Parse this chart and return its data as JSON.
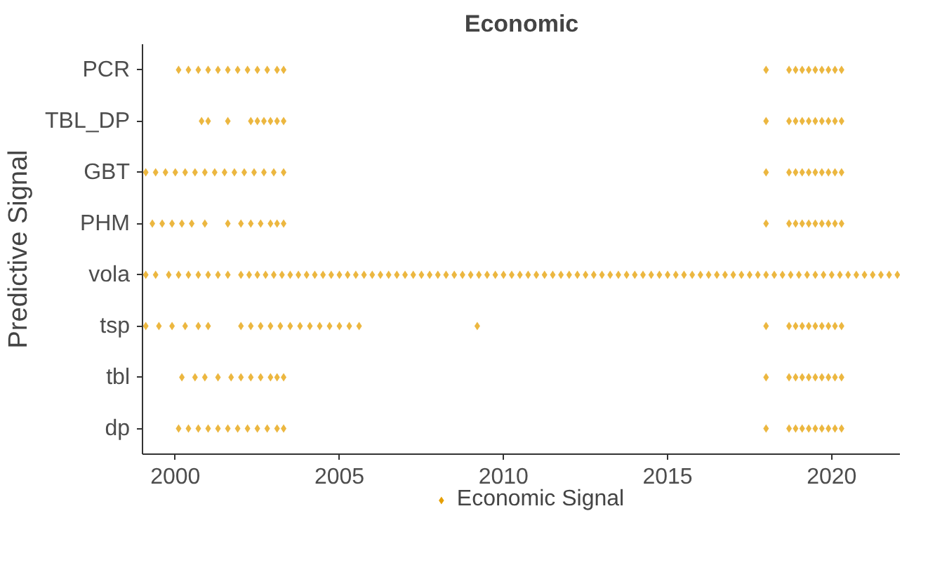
{
  "chart_data": {
    "type": "scatter",
    "orientation": "horizontal",
    "title": "Economic",
    "ylabel": "Predictive Signal",
    "xlim": [
      1999.0,
      2022.1
    ],
    "xticks": [
      2000,
      2005,
      2010,
      2015,
      2020
    ],
    "categories": [
      "PCR",
      "TBL_DP",
      "GBT",
      "PHM",
      "vola",
      "tsp",
      "tbl",
      "dp"
    ],
    "grid": false,
    "legend": "bottom",
    "marker": "diamond",
    "series": [
      {
        "name": "Economic Signal",
        "color": "#e69f00",
        "values": [
          2000.1,
          2000.4,
          2000.7,
          2001.0,
          2001.3,
          2001.6,
          2001.9,
          2002.2,
          2002.5,
          2002.8,
          2003.1,
          2003.3,
          2018.0,
          2018.7,
          2018.9,
          2019.1,
          2019.3,
          2019.5,
          2019.7,
          2019.9,
          2020.1,
          2020.3,
          2000.8,
          2001.0,
          2001.6,
          2002.3,
          2002.5,
          2002.7,
          2002.9,
          2003.1,
          2003.3,
          2018.0,
          2018.7,
          2018.9,
          2019.1,
          2019.3,
          2019.5,
          2019.7,
          2019.9,
          2020.1,
          2020.3,
          1999.1,
          1999.4,
          1999.7,
          2000.0,
          2000.3,
          2000.6,
          2000.9,
          2001.2,
          2001.5,
          2001.8,
          2002.1,
          2002.4,
          2002.7,
          2003.0,
          2003.3,
          2018.0,
          2018.7,
          2018.9,
          2019.1,
          2019.3,
          2019.5,
          2019.7,
          2019.9,
          2020.1,
          2020.3,
          1999.3,
          1999.6,
          1999.9,
          2000.2,
          2000.5,
          2000.9,
          2001.6,
          2002.0,
          2002.3,
          2002.6,
          2002.9,
          2003.1,
          2003.3,
          2018.0,
          2018.7,
          2018.9,
          2019.1,
          2019.3,
          2019.5,
          2019.7,
          2019.9,
          2020.1,
          2020.3,
          1999.1,
          1999.4,
          1999.8,
          2000.1,
          2000.4,
          2000.7,
          2001.0,
          2001.3,
          2001.6,
          2002.0,
          2002.25,
          2002.5,
          2002.75,
          2003.0,
          2003.25,
          2003.5,
          2003.75,
          2004.0,
          2004.25,
          2004.5,
          2004.75,
          2005.0,
          2005.25,
          2005.5,
          2005.75,
          2006.0,
          2006.25,
          2006.5,
          2006.75,
          2007.0,
          2007.25,
          2007.5,
          2007.75,
          2008.0,
          2008.25,
          2008.5,
          2008.75,
          2009.0,
          2009.25,
          2009.5,
          2009.75,
          2010.0,
          2010.25,
          2010.5,
          2010.75,
          2011.0,
          2011.25,
          2011.5,
          2011.75,
          2012.0,
          2012.25,
          2012.5,
          2012.75,
          2013.0,
          2013.25,
          2013.5,
          2013.75,
          2014.0,
          2014.25,
          2014.5,
          2014.75,
          2015.0,
          2015.25,
          2015.5,
          2015.75,
          2016.0,
          2016.25,
          2016.5,
          2016.75,
          2017.0,
          2017.25,
          2017.5,
          2017.75,
          2018.0,
          2018.25,
          2018.5,
          2018.75,
          2019.0,
          2019.25,
          2019.5,
          2019.75,
          2020.0,
          2020.25,
          2020.5,
          2020.75,
          2021.0,
          2021.25,
          2021.5,
          2021.75,
          2022.0,
          1999.1,
          1999.5,
          1999.9,
          2000.3,
          2000.7,
          2001.0,
          2002.0,
          2002.3,
          2002.6,
          2002.9,
          2003.2,
          2003.5,
          2003.8,
          2004.1,
          2004.4,
          2004.7,
          2005.0,
          2005.3,
          2005.6,
          2009.2,
          2018.0,
          2018.7,
          2018.9,
          2019.1,
          2019.3,
          2019.5,
          2019.7,
          2019.9,
          2020.1,
          2020.3,
          2000.2,
          2000.6,
          2000.9,
          2001.3,
          2001.7,
          2002.0,
          2002.3,
          2002.6,
          2002.9,
          2003.1,
          2003.3,
          2018.0,
          2018.7,
          2018.9,
          2019.1,
          2019.3,
          2019.5,
          2019.7,
          2019.9,
          2020.1,
          2020.3,
          2000.1,
          2000.4,
          2000.7,
          2001.0,
          2001.3,
          2001.6,
          2001.9,
          2002.2,
          2002.5,
          2002.8,
          2003.1,
          2003.3,
          2018.0,
          2018.7,
          2018.9,
          2019.1,
          2019.3,
          2019.5,
          2019.7,
          2019.9,
          2020.1,
          2020.3
        ],
        "x": [
          "PCR",
          "PCR",
          "PCR",
          "PCR",
          "PCR",
          "PCR",
          "PCR",
          "PCR",
          "PCR",
          "PCR",
          "PCR",
          "PCR",
          "PCR",
          "PCR",
          "PCR",
          "PCR",
          "PCR",
          "PCR",
          "PCR",
          "PCR",
          "PCR",
          "PCR",
          "TBL_DP",
          "TBL_DP",
          "TBL_DP",
          "TBL_DP",
          "TBL_DP",
          "TBL_DP",
          "TBL_DP",
          "TBL_DP",
          "TBL_DP",
          "TBL_DP",
          "TBL_DP",
          "TBL_DP",
          "TBL_DP",
          "TBL_DP",
          "TBL_DP",
          "TBL_DP",
          "TBL_DP",
          "TBL_DP",
          "TBL_DP",
          "GBT",
          "GBT",
          "GBT",
          "GBT",
          "GBT",
          "GBT",
          "GBT",
          "GBT",
          "GBT",
          "GBT",
          "GBT",
          "GBT",
          "GBT",
          "GBT",
          "GBT",
          "GBT",
          "GBT",
          "GBT",
          "GBT",
          "GBT",
          "GBT",
          "GBT",
          "GBT",
          "GBT",
          "GBT",
          "PHM",
          "PHM",
          "PHM",
          "PHM",
          "PHM",
          "PHM",
          "PHM",
          "PHM",
          "PHM",
          "PHM",
          "PHM",
          "PHM",
          "PHM",
          "PHM",
          "PHM",
          "PHM",
          "PHM",
          "PHM",
          "PHM",
          "PHM",
          "PHM",
          "PHM",
          "PHM",
          "vola",
          "vola",
          "vola",
          "vola",
          "vola",
          "vola",
          "vola",
          "vola",
          "vola",
          "vola",
          "vola",
          "vola",
          "vola",
          "vola",
          "vola",
          "vola",
          "vola",
          "vola",
          "vola",
          "vola",
          "vola",
          "vola",
          "vola",
          "vola",
          "vola",
          "vola",
          "vola",
          "vola",
          "vola",
          "vola",
          "vola",
          "vola",
          "vola",
          "vola",
          "vola",
          "vola",
          "vola",
          "vola",
          "vola",
          "vola",
          "vola",
          "vola",
          "vola",
          "vola",
          "vola",
          "vola",
          "vola",
          "vola",
          "vola",
          "vola",
          "vola",
          "vola",
          "vola",
          "vola",
          "vola",
          "vola",
          "vola",
          "vola",
          "vola",
          "vola",
          "vola",
          "vola",
          "vola",
          "vola",
          "vola",
          "vola",
          "vola",
          "vola",
          "vola",
          "vola",
          "vola",
          "vola",
          "vola",
          "vola",
          "vola",
          "vola",
          "vola",
          "vola",
          "vola",
          "vola",
          "vola",
          "vola",
          "vola",
          "vola",
          "vola",
          "vola",
          "vola",
          "vola",
          "vola",
          "vola",
          "tsp",
          "tsp",
          "tsp",
          "tsp",
          "tsp",
          "tsp",
          "tsp",
          "tsp",
          "tsp",
          "tsp",
          "tsp",
          "tsp",
          "tsp",
          "tsp",
          "tsp",
          "tsp",
          "tsp",
          "tsp",
          "tsp",
          "tsp",
          "tsp",
          "tsp",
          "tsp",
          "tsp",
          "tsp",
          "tsp",
          "tsp",
          "tsp",
          "tsp",
          "tsp",
          "tbl",
          "tbl",
          "tbl",
          "tbl",
          "tbl",
          "tbl",
          "tbl",
          "tbl",
          "tbl",
          "tbl",
          "tbl",
          "tbl",
          "tbl",
          "tbl",
          "tbl",
          "tbl",
          "tbl",
          "tbl",
          "tbl",
          "tbl",
          "tbl",
          "dp",
          "dp",
          "dp",
          "dp",
          "dp",
          "dp",
          "dp",
          "dp",
          "dp",
          "dp",
          "dp",
          "dp",
          "dp",
          "dp",
          "dp",
          "dp",
          "dp",
          "dp",
          "dp",
          "dp",
          "dp",
          "dp"
        ]
      }
    ]
  }
}
